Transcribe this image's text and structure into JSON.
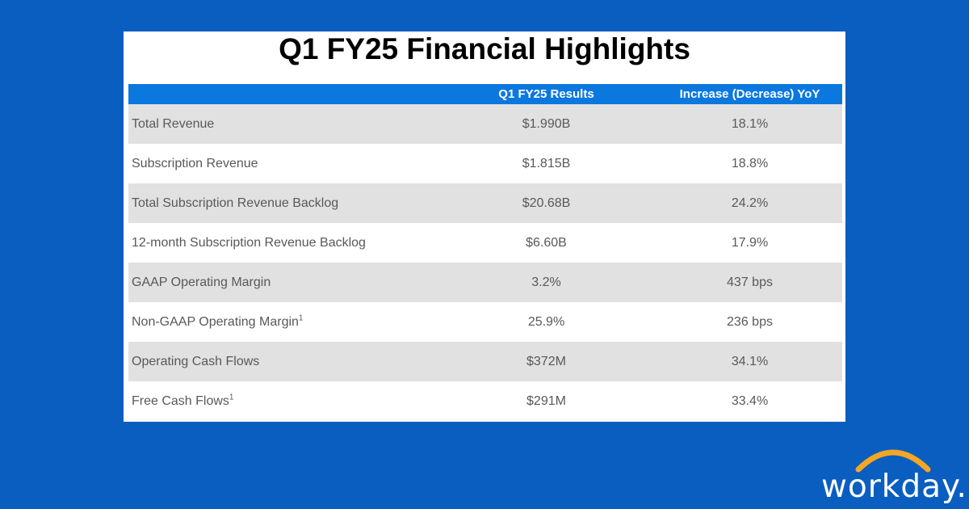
{
  "title": "Q1 FY25 Financial Highlights",
  "table": {
    "headers": [
      "",
      "Q1 FY25 Results",
      "Increase (Decrease) YoY"
    ],
    "rows": [
      {
        "metric": "Total Revenue",
        "footnote": "",
        "result": "$1.990B",
        "change": "18.1%"
      },
      {
        "metric": "Subscription Revenue",
        "footnote": "",
        "result": "$1.815B",
        "change": "18.8%"
      },
      {
        "metric": "Total Subscription Revenue Backlog",
        "footnote": "",
        "result": "$20.68B",
        "change": "24.2%"
      },
      {
        "metric": "12-month Subscription Revenue Backlog",
        "footnote": "",
        "result": "$6.60B",
        "change": "17.9%"
      },
      {
        "metric": "GAAP Operating Margin",
        "footnote": "",
        "result": "3.2%",
        "change": "437 bps"
      },
      {
        "metric": "Non-GAAP Operating Margin",
        "footnote": "1",
        "result": "25.9%",
        "change": "236 bps"
      },
      {
        "metric": "Operating Cash Flows",
        "footnote": "",
        "result": "$372M",
        "change": "34.1%"
      },
      {
        "metric": "Free Cash Flows",
        "footnote": "1",
        "result": "$291M",
        "change": "33.4%"
      }
    ]
  },
  "logo": {
    "text": "workday.",
    "icon": "workday-arc-icon",
    "arc_color": "#f5a623"
  },
  "colors": {
    "background": "#0a5ec0",
    "header": "#0b78e0",
    "row_shade": "#e1e1e1"
  }
}
